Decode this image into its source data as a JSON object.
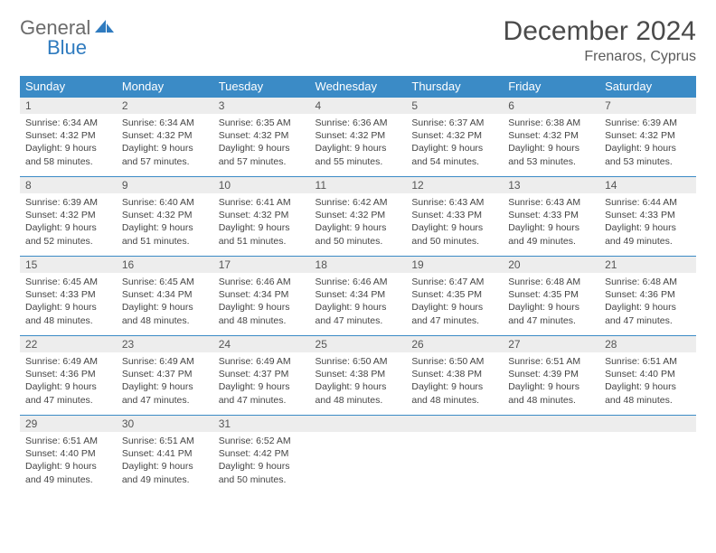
{
  "logo": {
    "part1": "General",
    "part2": "Blue"
  },
  "title": "December 2024",
  "location": "Frenaros, Cyprus",
  "colors": {
    "header_bg": "#3b8bc6",
    "header_text": "#ffffff",
    "daynum_bg": "#ededed",
    "border": "#3b8bc6",
    "logo_gray": "#6b6b6b",
    "logo_blue": "#2f7bbf"
  },
  "weekdays": [
    "Sunday",
    "Monday",
    "Tuesday",
    "Wednesday",
    "Thursday",
    "Friday",
    "Saturday"
  ],
  "weeks": [
    [
      {
        "d": "1",
        "sr": "Sunrise: 6:34 AM",
        "ss": "Sunset: 4:32 PM",
        "dl1": "Daylight: 9 hours",
        "dl2": "and 58 minutes."
      },
      {
        "d": "2",
        "sr": "Sunrise: 6:34 AM",
        "ss": "Sunset: 4:32 PM",
        "dl1": "Daylight: 9 hours",
        "dl2": "and 57 minutes."
      },
      {
        "d": "3",
        "sr": "Sunrise: 6:35 AM",
        "ss": "Sunset: 4:32 PM",
        "dl1": "Daylight: 9 hours",
        "dl2": "and 57 minutes."
      },
      {
        "d": "4",
        "sr": "Sunrise: 6:36 AM",
        "ss": "Sunset: 4:32 PM",
        "dl1": "Daylight: 9 hours",
        "dl2": "and 55 minutes."
      },
      {
        "d": "5",
        "sr": "Sunrise: 6:37 AM",
        "ss": "Sunset: 4:32 PM",
        "dl1": "Daylight: 9 hours",
        "dl2": "and 54 minutes."
      },
      {
        "d": "6",
        "sr": "Sunrise: 6:38 AM",
        "ss": "Sunset: 4:32 PM",
        "dl1": "Daylight: 9 hours",
        "dl2": "and 53 minutes."
      },
      {
        "d": "7",
        "sr": "Sunrise: 6:39 AM",
        "ss": "Sunset: 4:32 PM",
        "dl1": "Daylight: 9 hours",
        "dl2": "and 53 minutes."
      }
    ],
    [
      {
        "d": "8",
        "sr": "Sunrise: 6:39 AM",
        "ss": "Sunset: 4:32 PM",
        "dl1": "Daylight: 9 hours",
        "dl2": "and 52 minutes."
      },
      {
        "d": "9",
        "sr": "Sunrise: 6:40 AM",
        "ss": "Sunset: 4:32 PM",
        "dl1": "Daylight: 9 hours",
        "dl2": "and 51 minutes."
      },
      {
        "d": "10",
        "sr": "Sunrise: 6:41 AM",
        "ss": "Sunset: 4:32 PM",
        "dl1": "Daylight: 9 hours",
        "dl2": "and 51 minutes."
      },
      {
        "d": "11",
        "sr": "Sunrise: 6:42 AM",
        "ss": "Sunset: 4:32 PM",
        "dl1": "Daylight: 9 hours",
        "dl2": "and 50 minutes."
      },
      {
        "d": "12",
        "sr": "Sunrise: 6:43 AM",
        "ss": "Sunset: 4:33 PM",
        "dl1": "Daylight: 9 hours",
        "dl2": "and 50 minutes."
      },
      {
        "d": "13",
        "sr": "Sunrise: 6:43 AM",
        "ss": "Sunset: 4:33 PM",
        "dl1": "Daylight: 9 hours",
        "dl2": "and 49 minutes."
      },
      {
        "d": "14",
        "sr": "Sunrise: 6:44 AM",
        "ss": "Sunset: 4:33 PM",
        "dl1": "Daylight: 9 hours",
        "dl2": "and 49 minutes."
      }
    ],
    [
      {
        "d": "15",
        "sr": "Sunrise: 6:45 AM",
        "ss": "Sunset: 4:33 PM",
        "dl1": "Daylight: 9 hours",
        "dl2": "and 48 minutes."
      },
      {
        "d": "16",
        "sr": "Sunrise: 6:45 AM",
        "ss": "Sunset: 4:34 PM",
        "dl1": "Daylight: 9 hours",
        "dl2": "and 48 minutes."
      },
      {
        "d": "17",
        "sr": "Sunrise: 6:46 AM",
        "ss": "Sunset: 4:34 PM",
        "dl1": "Daylight: 9 hours",
        "dl2": "and 48 minutes."
      },
      {
        "d": "18",
        "sr": "Sunrise: 6:46 AM",
        "ss": "Sunset: 4:34 PM",
        "dl1": "Daylight: 9 hours",
        "dl2": "and 47 minutes."
      },
      {
        "d": "19",
        "sr": "Sunrise: 6:47 AM",
        "ss": "Sunset: 4:35 PM",
        "dl1": "Daylight: 9 hours",
        "dl2": "and 47 minutes."
      },
      {
        "d": "20",
        "sr": "Sunrise: 6:48 AM",
        "ss": "Sunset: 4:35 PM",
        "dl1": "Daylight: 9 hours",
        "dl2": "and 47 minutes."
      },
      {
        "d": "21",
        "sr": "Sunrise: 6:48 AM",
        "ss": "Sunset: 4:36 PM",
        "dl1": "Daylight: 9 hours",
        "dl2": "and 47 minutes."
      }
    ],
    [
      {
        "d": "22",
        "sr": "Sunrise: 6:49 AM",
        "ss": "Sunset: 4:36 PM",
        "dl1": "Daylight: 9 hours",
        "dl2": "and 47 minutes."
      },
      {
        "d": "23",
        "sr": "Sunrise: 6:49 AM",
        "ss": "Sunset: 4:37 PM",
        "dl1": "Daylight: 9 hours",
        "dl2": "and 47 minutes."
      },
      {
        "d": "24",
        "sr": "Sunrise: 6:49 AM",
        "ss": "Sunset: 4:37 PM",
        "dl1": "Daylight: 9 hours",
        "dl2": "and 47 minutes."
      },
      {
        "d": "25",
        "sr": "Sunrise: 6:50 AM",
        "ss": "Sunset: 4:38 PM",
        "dl1": "Daylight: 9 hours",
        "dl2": "and 48 minutes."
      },
      {
        "d": "26",
        "sr": "Sunrise: 6:50 AM",
        "ss": "Sunset: 4:38 PM",
        "dl1": "Daylight: 9 hours",
        "dl2": "and 48 minutes."
      },
      {
        "d": "27",
        "sr": "Sunrise: 6:51 AM",
        "ss": "Sunset: 4:39 PM",
        "dl1": "Daylight: 9 hours",
        "dl2": "and 48 minutes."
      },
      {
        "d": "28",
        "sr": "Sunrise: 6:51 AM",
        "ss": "Sunset: 4:40 PM",
        "dl1": "Daylight: 9 hours",
        "dl2": "and 48 minutes."
      }
    ],
    [
      {
        "d": "29",
        "sr": "Sunrise: 6:51 AM",
        "ss": "Sunset: 4:40 PM",
        "dl1": "Daylight: 9 hours",
        "dl2": "and 49 minutes."
      },
      {
        "d": "30",
        "sr": "Sunrise: 6:51 AM",
        "ss": "Sunset: 4:41 PM",
        "dl1": "Daylight: 9 hours",
        "dl2": "and 49 minutes."
      },
      {
        "d": "31",
        "sr": "Sunrise: 6:52 AM",
        "ss": "Sunset: 4:42 PM",
        "dl1": "Daylight: 9 hours",
        "dl2": "and 50 minutes."
      },
      {
        "empty": true
      },
      {
        "empty": true
      },
      {
        "empty": true
      },
      {
        "empty": true
      }
    ]
  ]
}
